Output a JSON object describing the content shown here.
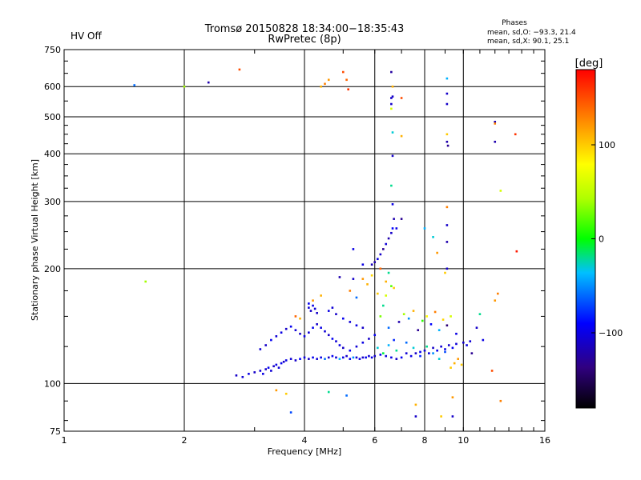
{
  "header": {
    "title_line1": "Tromsø 20150828 18:34:00−18:35:43",
    "title_line2": "RwPretec (8p)",
    "status": "HV Off",
    "status_color": "#d00000",
    "phase_title": "Phases",
    "phase_line1": "mean, sd,O: −93.3, 21.4",
    "phase_line2": "mean, sd,X:  90.1, 25.1"
  },
  "chart_data": {
    "type": "scatter",
    "xlabel": "Frequency [MHz]",
    "ylabel": "Stationary phase Virtual Height [km]",
    "xscale": "log",
    "yscale": "log",
    "xlim": [
      1,
      16
    ],
    "ylim": [
      75,
      750
    ],
    "grid": true,
    "x_ticks": [
      {
        "value": 1,
        "label": "1"
      },
      {
        "value": 2,
        "label": "2"
      },
      {
        "value": 4,
        "label": "4"
      },
      {
        "value": 6,
        "label": "6"
      },
      {
        "value": 8,
        "label": "8"
      },
      {
        "value": 10,
        "label": "10"
      },
      {
        "value": 16,
        "label": "16"
      }
    ],
    "y_ticks": [
      {
        "value": 75,
        "label": "75"
      },
      {
        "value": 100,
        "label": "100"
      },
      {
        "value": 200,
        "label": "200"
      },
      {
        "value": 300,
        "label": "300"
      },
      {
        "value": 400,
        "label": "400"
      },
      {
        "value": 500,
        "label": "500"
      },
      {
        "value": 600,
        "label": "600"
      },
      {
        "value": 750,
        "label": "750"
      }
    ],
    "colorbar": {
      "label": "[deg]",
      "range": [
        -180,
        180
      ],
      "ticks": [
        {
          "value": 100,
          "label": "100"
        },
        {
          "value": 0,
          "label": "0"
        },
        {
          "value": -100,
          "label": "−100"
        }
      ]
    },
    "point_columns": [
      "freq_mhz",
      "height_km",
      "phase_deg"
    ],
    "points": [
      [
        2.7,
        105,
        -110
      ],
      [
        2.8,
        104,
        -105
      ],
      [
        2.9,
        106,
        -100
      ],
      [
        3.0,
        107,
        -110
      ],
      [
        3.1,
        108,
        -105
      ],
      [
        3.15,
        106,
        -100
      ],
      [
        3.2,
        109,
        -110
      ],
      [
        3.25,
        110,
        -95
      ],
      [
        3.3,
        108,
        -105
      ],
      [
        3.35,
        111,
        -110
      ],
      [
        3.4,
        112,
        -100
      ],
      [
        3.45,
        110,
        -105
      ],
      [
        3.5,
        113,
        -95
      ],
      [
        3.55,
        114,
        -110
      ],
      [
        3.6,
        115,
        -100
      ],
      [
        3.7,
        116,
        -105
      ],
      [
        3.8,
        115,
        -110
      ],
      [
        3.9,
        116,
        -90
      ],
      [
        4.0,
        117,
        -100
      ],
      [
        4.1,
        116,
        -110
      ],
      [
        4.2,
        117,
        -95
      ],
      [
        4.3,
        116,
        -105
      ],
      [
        4.4,
        117,
        -100
      ],
      [
        4.5,
        116,
        -60
      ],
      [
        4.6,
        117,
        -110
      ],
      [
        4.7,
        118,
        -95
      ],
      [
        4.8,
        117,
        -105
      ],
      [
        4.9,
        116,
        -40
      ],
      [
        5.0,
        117,
        -100
      ],
      [
        5.1,
        118,
        -110
      ],
      [
        5.2,
        116,
        -95
      ],
      [
        5.3,
        117,
        -50
      ],
      [
        5.4,
        117,
        -105
      ],
      [
        5.5,
        116,
        -100
      ],
      [
        5.6,
        117,
        -110
      ],
      [
        5.7,
        117,
        -95
      ],
      [
        5.8,
        118,
        -105
      ],
      [
        5.9,
        117,
        -100
      ],
      [
        6.0,
        118,
        -110
      ],
      [
        6.2,
        119,
        -95
      ],
      [
        6.4,
        118,
        -105
      ],
      [
        6.6,
        117,
        -100
      ],
      [
        6.8,
        116,
        -110
      ],
      [
        7.0,
        117,
        -95
      ],
      [
        7.2,
        120,
        -105
      ],
      [
        7.4,
        118,
        -100
      ],
      [
        7.6,
        120,
        -110
      ],
      [
        7.8,
        121,
        -95
      ],
      [
        8.0,
        122,
        -105
      ],
      [
        8.2,
        120,
        -100
      ],
      [
        8.4,
        124,
        -110
      ],
      [
        8.6,
        122,
        -95
      ],
      [
        8.8,
        125,
        -105
      ],
      [
        9.0,
        123,
        -100
      ],
      [
        9.2,
        126,
        -110
      ],
      [
        9.4,
        124,
        -95
      ],
      [
        9.6,
        127,
        -105
      ],
      [
        10.0,
        128,
        -110
      ],
      [
        10.2,
        126,
        -100
      ],
      [
        10.4,
        129,
        -105
      ],
      [
        3.1,
        123,
        -105
      ],
      [
        3.2,
        126,
        -110
      ],
      [
        3.3,
        130,
        -95
      ],
      [
        3.4,
        133,
        -105
      ],
      [
        3.5,
        136,
        -100
      ],
      [
        3.6,
        139,
        -110
      ],
      [
        3.7,
        141,
        -95
      ],
      [
        3.8,
        138,
        -105
      ],
      [
        3.9,
        135,
        -110
      ],
      [
        4.0,
        133,
        -100
      ],
      [
        4.1,
        136,
        -105
      ],
      [
        4.2,
        140,
        -95
      ],
      [
        4.3,
        143,
        -110
      ],
      [
        4.4,
        140,
        -100
      ],
      [
        4.5,
        137,
        -105
      ],
      [
        4.6,
        134,
        -110
      ],
      [
        4.7,
        131,
        -95
      ],
      [
        4.8,
        129,
        -105
      ],
      [
        4.9,
        126,
        -100
      ],
      [
        5.0,
        124,
        -110
      ],
      [
        5.2,
        122,
        -95
      ],
      [
        5.4,
        125,
        -105
      ],
      [
        5.6,
        128,
        -100
      ],
      [
        5.8,
        131,
        -110
      ],
      [
        6.0,
        134,
        -95
      ],
      [
        4.1,
        158,
        -105
      ],
      [
        4.15,
        155,
        -110
      ],
      [
        4.2,
        160,
        -100
      ],
      [
        4.25,
        157,
        -105
      ],
      [
        4.3,
        153,
        -110
      ],
      [
        4.1,
        162,
        -95
      ],
      [
        4.6,
        155,
        -100
      ],
      [
        4.7,
        158,
        -105
      ],
      [
        4.8,
        152,
        -110
      ],
      [
        5.0,
        148,
        -95
      ],
      [
        5.2,
        145,
        -105
      ],
      [
        5.4,
        142,
        -100
      ],
      [
        5.6,
        140,
        -110
      ],
      [
        6.2,
        150,
        30
      ],
      [
        6.3,
        160,
        -20
      ],
      [
        6.4,
        170,
        60
      ],
      [
        6.5,
        140,
        -60
      ],
      [
        6.6,
        180,
        20
      ],
      [
        6.7,
        130,
        -80
      ],
      [
        6.9,
        145,
        -120
      ],
      [
        7.1,
        152,
        40
      ],
      [
        7.3,
        148,
        -50
      ],
      [
        7.5,
        155,
        110
      ],
      [
        7.7,
        138,
        -130
      ],
      [
        7.9,
        146,
        10
      ],
      [
        8.1,
        150,
        80
      ],
      [
        8.3,
        143,
        -90
      ],
      [
        8.5,
        154,
        130
      ],
      [
        8.7,
        138,
        -40
      ],
      [
        8.9,
        147,
        95
      ],
      [
        9.1,
        142,
        -140
      ],
      [
        9.3,
        150,
        60
      ],
      [
        9.6,
        135,
        -100
      ],
      [
        5.6,
        188,
        120
      ],
      [
        5.9,
        192,
        95
      ],
      [
        6.2,
        200,
        140
      ],
      [
        6.4,
        185,
        110
      ],
      [
        6.7,
        178,
        100
      ],
      [
        5.2,
        175,
        130
      ],
      [
        5.4,
        168,
        -60
      ],
      [
        6.1,
        172,
        100
      ],
      [
        6.5,
        195,
        -20
      ],
      [
        6.0,
        208,
        -120
      ],
      [
        6.1,
        212,
        -100
      ],
      [
        6.2,
        218,
        -110
      ],
      [
        6.3,
        225,
        -130
      ],
      [
        6.4,
        232,
        -105
      ],
      [
        6.5,
        240,
        -120
      ],
      [
        6.6,
        248,
        -110
      ],
      [
        6.8,
        255,
        -100
      ],
      [
        5.9,
        205,
        -115
      ],
      [
        6.65,
        395,
        -110
      ],
      [
        6.6,
        330,
        -20
      ],
      [
        6.65,
        295,
        -100
      ],
      [
        6.7,
        270,
        -120
      ],
      [
        6.65,
        255,
        -90
      ],
      [
        6.65,
        455,
        -30
      ],
      [
        6.6,
        540,
        -110
      ],
      [
        6.6,
        560,
        -110
      ],
      [
        6.65,
        565,
        -110
      ],
      [
        6.65,
        600,
        110
      ],
      [
        6.6,
        655,
        -125
      ],
      [
        6.6,
        525,
        60
      ],
      [
        7.0,
        560,
        150
      ],
      [
        7.0,
        445,
        110
      ],
      [
        7.0,
        270,
        -130
      ],
      [
        9.1,
        540,
        -110
      ],
      [
        9.1,
        575,
        -110
      ],
      [
        9.1,
        630,
        -40
      ],
      [
        9.1,
        430,
        -120
      ],
      [
        9.15,
        420,
        -130
      ],
      [
        9.1,
        450,
        100
      ],
      [
        9.1,
        290,
        130
      ],
      [
        9.1,
        260,
        -110
      ],
      [
        9.1,
        235,
        -120
      ],
      [
        9.1,
        200,
        -110
      ],
      [
        8.0,
        255,
        -40
      ],
      [
        8.4,
        242,
        -30
      ],
      [
        8.6,
        220,
        120
      ],
      [
        9.0,
        195,
        100
      ],
      [
        5.0,
        655,
        150
      ],
      [
        5.1,
        625,
        140
      ],
      [
        5.15,
        590,
        160
      ],
      [
        4.5,
        610,
        130
      ],
      [
        4.6,
        625,
        120
      ],
      [
        4.4,
        600,
        110
      ],
      [
        12.0,
        485,
        -120
      ],
      [
        12.0,
        430,
        -120
      ],
      [
        12.0,
        480,
        130
      ],
      [
        12.4,
        320,
        60
      ],
      [
        13.5,
        450,
        160
      ],
      [
        13.6,
        222,
        170
      ],
      [
        2.3,
        615,
        -120
      ],
      [
        2.75,
        665,
        150
      ],
      [
        2.0,
        600,
        40
      ],
      [
        1.5,
        605,
        -60
      ],
      [
        1.6,
        185,
        40
      ],
      [
        12.0,
        165,
        120
      ],
      [
        12.2,
        172,
        130
      ],
      [
        11.8,
        108,
        150
      ],
      [
        12.4,
        90,
        130
      ],
      [
        3.4,
        96,
        120
      ],
      [
        3.6,
        94,
        100
      ],
      [
        3.7,
        84,
        -70
      ],
      [
        4.6,
        95,
        -20
      ],
      [
        5.1,
        93,
        -60
      ],
      [
        7.6,
        88,
        110
      ],
      [
        7.6,
        82,
        -110
      ],
      [
        8.8,
        82,
        100
      ],
      [
        9.4,
        82,
        -110
      ],
      [
        9.4,
        92,
        120
      ],
      [
        3.8,
        150,
        140
      ],
      [
        4.2,
        165,
        120
      ],
      [
        4.4,
        170,
        110
      ],
      [
        3.9,
        148,
        110
      ],
      [
        5.3,
        188,
        -110
      ],
      [
        4.9,
        190,
        -120
      ],
      [
        5.3,
        225,
        -100
      ],
      [
        5.6,
        205,
        -100
      ],
      [
        5.75,
        182,
        110
      ],
      [
        6.1,
        124,
        -30
      ],
      [
        6.3,
        120,
        -10
      ],
      [
        6.5,
        126,
        -40
      ],
      [
        6.8,
        122,
        -20
      ],
      [
        7.2,
        128,
        -60
      ],
      [
        7.5,
        124,
        -30
      ],
      [
        7.8,
        118,
        -80
      ],
      [
        8.1,
        125,
        -20
      ],
      [
        8.4,
        120,
        -50
      ],
      [
        8.7,
        116,
        -30
      ],
      [
        9.0,
        121,
        -70
      ],
      [
        9.3,
        110,
        100
      ],
      [
        9.5,
        113,
        110
      ],
      [
        9.7,
        116,
        120
      ],
      [
        9.9,
        112,
        100
      ],
      [
        10.5,
        120,
        -130
      ],
      [
        11.0,
        152,
        -20
      ],
      [
        11.2,
        130,
        -100
      ],
      [
        10.8,
        140,
        -110
      ]
    ]
  }
}
